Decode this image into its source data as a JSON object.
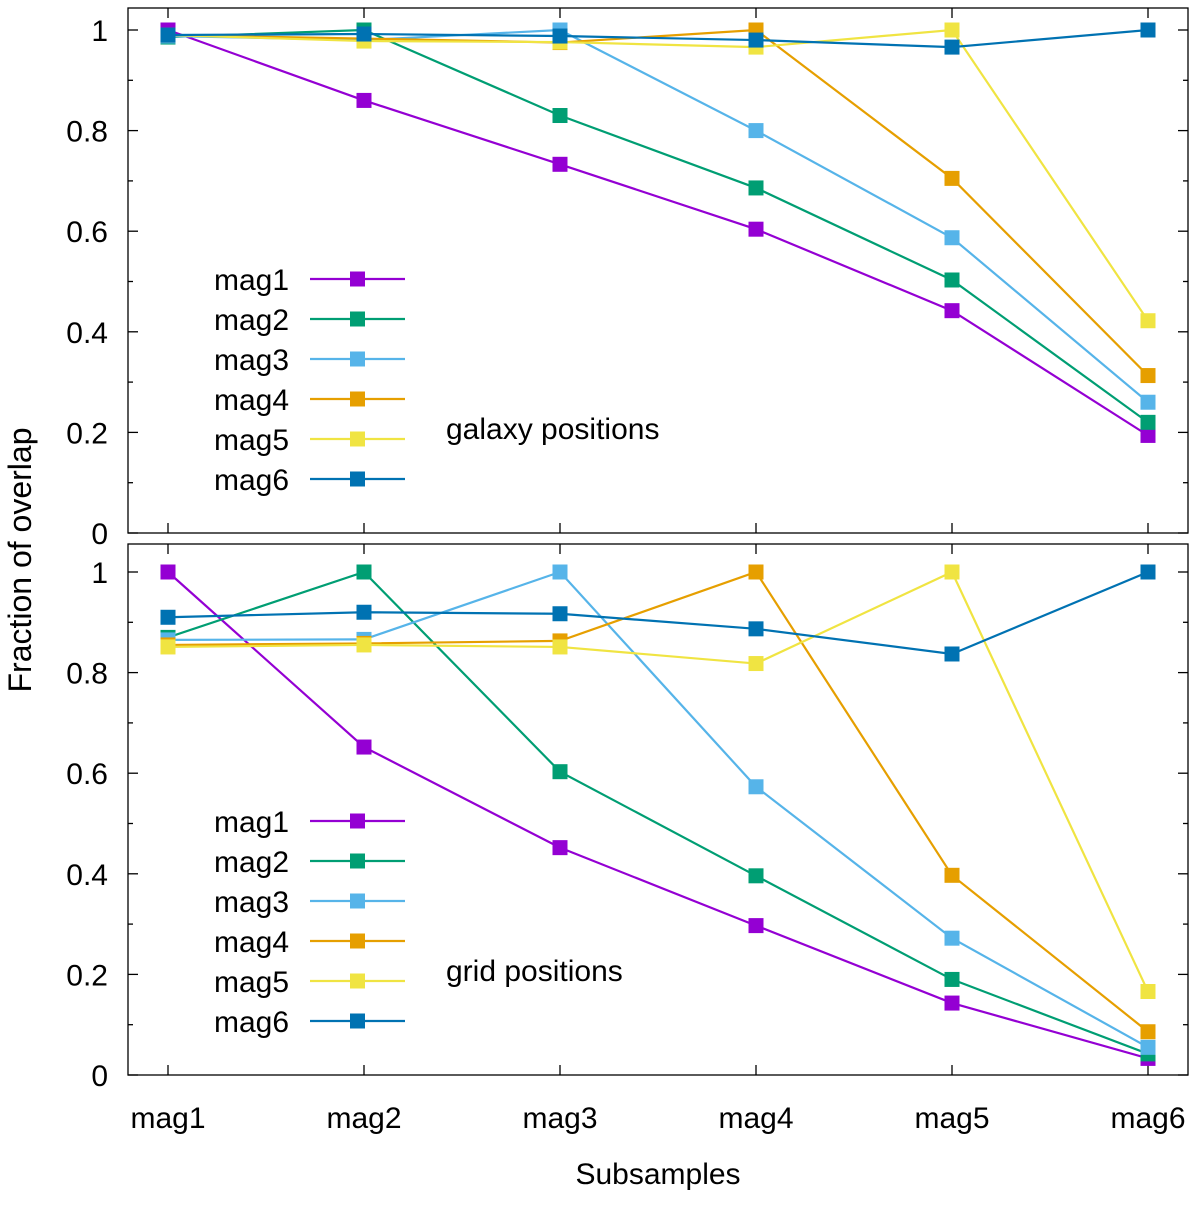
{
  "chart_data": {
    "type": "line",
    "ylabel": "Fraction of overlap",
    "xlabel": "Subsamples",
    "categories": [
      "mag1",
      "mag2",
      "mag3",
      "mag4",
      "mag5",
      "mag6"
    ],
    "ylim": [
      0,
      1.05
    ],
    "yticks": [
      0,
      0.2,
      0.4,
      0.6,
      0.8,
      1
    ],
    "ytick_labels": [
      "0",
      "0.2",
      "0.4",
      "0.6",
      "0.8",
      "1"
    ],
    "colors": {
      "mag1": "#9400d3",
      "mag2": "#009e73",
      "mag3": "#56b4e9",
      "mag4": "#e69f00",
      "mag5": "#f0e442",
      "mag6": "#0072b2"
    },
    "panels": [
      {
        "annotation": "galaxy positions",
        "legend_position": "left",
        "series": [
          {
            "name": "mag1",
            "values": [
              1.0,
              0.86,
              0.733,
              0.604,
              0.442,
              0.194
            ]
          },
          {
            "name": "mag2",
            "values": [
              0.986,
              1.0,
              0.83,
              0.686,
              0.503,
              0.22
            ]
          },
          {
            "name": "mag3",
            "values": [
              0.988,
              0.98,
              1.0,
              0.8,
              0.587,
              0.26
            ]
          },
          {
            "name": "mag4",
            "values": [
              0.99,
              0.983,
              0.975,
              1.0,
              0.705,
              0.313
            ]
          },
          {
            "name": "mag5",
            "values": [
              0.99,
              0.978,
              0.976,
              0.966,
              1.0,
              0.422
            ]
          },
          {
            "name": "mag6",
            "values": [
              0.99,
              0.992,
              0.988,
              0.98,
              0.966,
              1.0
            ]
          }
        ]
      },
      {
        "annotation": "grid positions",
        "legend_position": "left",
        "series": [
          {
            "name": "mag1",
            "values": [
              1.0,
              0.652,
              0.452,
              0.297,
              0.143,
              0.033
            ]
          },
          {
            "name": "mag2",
            "values": [
              0.87,
              1.0,
              0.603,
              0.396,
              0.19,
              0.042
            ]
          },
          {
            "name": "mag3",
            "values": [
              0.865,
              0.866,
              1.0,
              0.573,
              0.272,
              0.055
            ]
          },
          {
            "name": "mag4",
            "values": [
              0.855,
              0.858,
              0.863,
              1.0,
              0.397,
              0.086
            ]
          },
          {
            "name": "mag5",
            "values": [
              0.851,
              0.855,
              0.851,
              0.818,
              1.0,
              0.166
            ]
          },
          {
            "name": "mag6",
            "values": [
              0.91,
              0.92,
              0.917,
              0.887,
              0.837,
              1.0
            ]
          }
        ]
      }
    ]
  }
}
